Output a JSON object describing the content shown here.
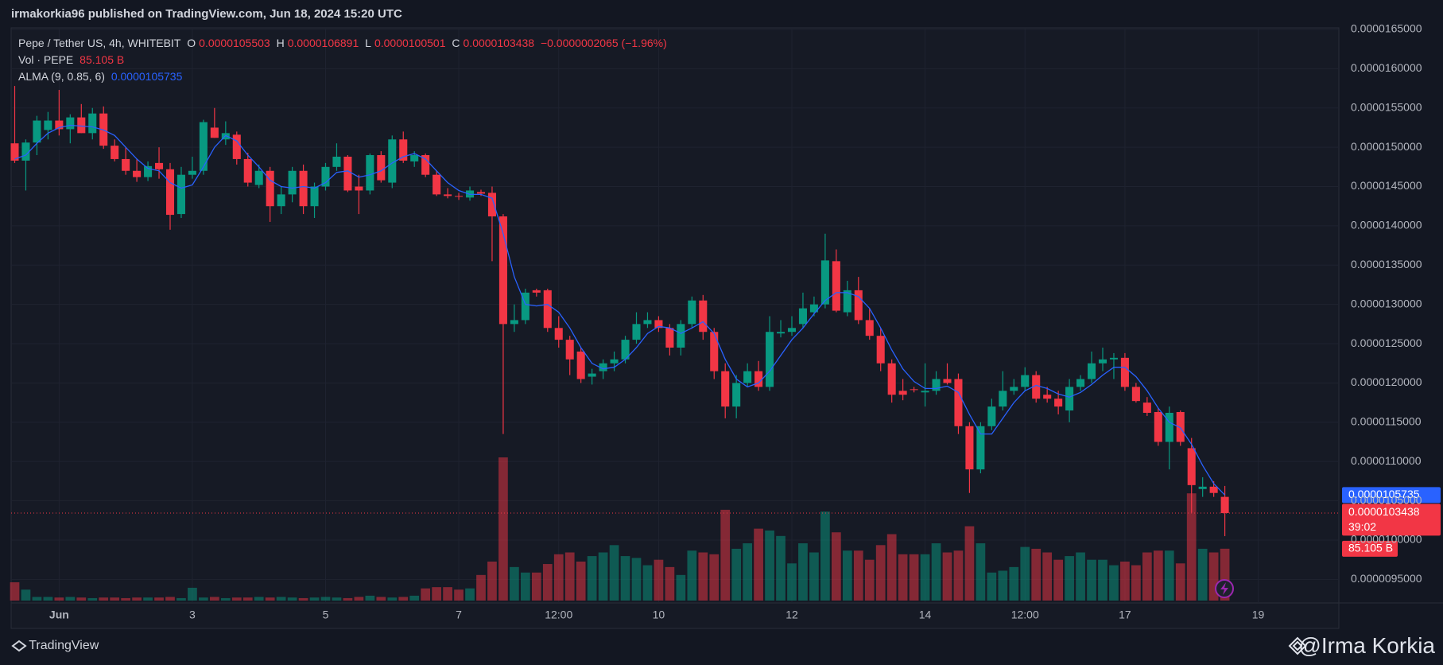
{
  "chart_data": {
    "type": "candlestick",
    "published": "irmakorkia96 published on TradingView.com, Jun 18, 2024 15:20 UTC",
    "symbol": "Pepe / Tether US, 4h, WHITEBIT",
    "ohlc_legend": [
      {
        "key": "O",
        "value": "0.0000105503"
      },
      {
        "key": "H",
        "value": "0.0000106891"
      },
      {
        "key": "L",
        "value": "0.0000100501"
      },
      {
        "key": "C",
        "value": "0.0000103438"
      }
    ],
    "change": "−0.0000002065 (−1.96%)",
    "volume_label": "Vol · PEPE",
    "volume_last": "85.105 B",
    "indicator": "ALMA (9, 0.85, 6)",
    "indicator_last": "0.0000105735",
    "countdown": "39:02",
    "brand": "TradingView",
    "watermark": "@Irma Korkia",
    "up_color": "#089981",
    "down_color": "#f23645",
    "alma_color": "#2962ff",
    "grid": true,
    "ylim": [
      9.2e-06,
      1.652e-05
    ],
    "yticks": [
      {
        "value": 1.65e-05,
        "label": "0.0000165000"
      },
      {
        "value": 1.6e-05,
        "label": "0.0000160000"
      },
      {
        "value": 1.55e-05,
        "label": "0.0000155000"
      },
      {
        "value": 1.5e-05,
        "label": "0.0000150000"
      },
      {
        "value": 1.45e-05,
        "label": "0.0000145000"
      },
      {
        "value": 1.4e-05,
        "label": "0.0000140000"
      },
      {
        "value": 1.35e-05,
        "label": "0.0000135000"
      },
      {
        "value": 1.3e-05,
        "label": "0.0000130000"
      },
      {
        "value": 1.25e-05,
        "label": "0.0000125000"
      },
      {
        "value": 1.2e-05,
        "label": "0.0000120000"
      },
      {
        "value": 1.15e-05,
        "label": "0.0000115000"
      },
      {
        "value": 1.1e-05,
        "label": "0.0000110000"
      },
      {
        "value": 1.05e-05,
        "label": "0.0000105000"
      },
      {
        "value": 1e-05,
        "label": "0.0000100000"
      },
      {
        "value": 9.5e-06,
        "label": "0.0000095000"
      }
    ],
    "xticks": [
      {
        "value": 4,
        "label": "Jun"
      },
      {
        "value": 16,
        "label": "3"
      },
      {
        "value": 28,
        "label": "5"
      },
      {
        "value": 40,
        "label": "7"
      },
      {
        "value": 49,
        "label": "12:00"
      },
      {
        "value": 58,
        "label": "10"
      },
      {
        "value": 70,
        "label": "12"
      },
      {
        "value": 82,
        "label": "14"
      },
      {
        "value": 91,
        "label": "12:00"
      },
      {
        "value": 100,
        "label": "17"
      },
      {
        "value": 112,
        "label": "19"
      }
    ],
    "ohlc": [
      [
        1.505e-05,
        1.578e-05,
        1.48e-05,
        1.483e-05
      ],
      [
        1.483e-05,
        1.51e-05,
        1.445e-05,
        1.506e-05
      ],
      [
        1.506e-05,
        1.54e-05,
        1.49e-05,
        1.534e-05
      ],
      [
        1.522e-05,
        1.545e-05,
        1.51e-05,
        1.534e-05
      ],
      [
        1.534e-05,
        1.573e-05,
        1.515e-05,
        1.523e-05
      ],
      [
        1.523e-05,
        1.542e-05,
        1.505e-05,
        1.538e-05
      ],
      [
        1.538e-05,
        1.555e-05,
        1.518e-05,
        1.518e-05
      ],
      [
        1.518e-05,
        1.55e-05,
        1.51e-05,
        1.543e-05
      ],
      [
        1.543e-05,
        1.552e-05,
        1.498e-05,
        1.502e-05
      ],
      [
        1.502e-05,
        1.51e-05,
        1.482e-05,
        1.485e-05
      ],
      [
        1.485e-05,
        1.5e-05,
        1.465e-05,
        1.47e-05
      ],
      [
        1.47e-05,
        1.485e-05,
        1.456e-05,
        1.462e-05
      ],
      [
        1.462e-05,
        1.482e-05,
        1.457e-05,
        1.476e-05
      ],
      [
        1.48e-05,
        1.5e-05,
        1.46e-05,
        1.472e-05
      ],
      [
        1.472e-05,
        1.48e-05,
        1.395e-05,
        1.414e-05
      ],
      [
        1.415e-05,
        1.475e-05,
        1.41e-05,
        1.465e-05
      ],
      [
        1.465e-05,
        1.488e-05,
        1.46e-05,
        1.47e-05
      ],
      [
        1.47e-05,
        1.535e-05,
        1.465e-05,
        1.532e-05
      ],
      [
        1.525e-05,
        1.55e-05,
        1.512e-05,
        1.512e-05
      ],
      [
        1.51e-05,
        1.533e-05,
        1.503e-05,
        1.518e-05
      ],
      [
        1.516e-05,
        1.52e-05,
        1.478e-05,
        1.485e-05
      ],
      [
        1.485e-05,
        1.493e-05,
        1.45e-05,
        1.455e-05
      ],
      [
        1.452e-05,
        1.478e-05,
        1.448e-05,
        1.47e-05
      ],
      [
        1.47e-05,
        1.475e-05,
        1.405e-05,
        1.425e-05
      ],
      [
        1.425e-05,
        1.45e-05,
        1.415e-05,
        1.44e-05
      ],
      [
        1.44e-05,
        1.475e-05,
        1.43e-05,
        1.47e-05
      ],
      [
        1.47e-05,
        1.478e-05,
        1.415e-05,
        1.425e-05
      ],
      [
        1.425e-05,
        1.455e-05,
        1.41e-05,
        1.45e-05
      ],
      [
        1.45e-05,
        1.48e-05,
        1.445e-05,
        1.475e-05
      ],
      [
        1.475e-05,
        1.505e-05,
        1.47e-05,
        1.488e-05
      ],
      [
        1.488e-05,
        1.49e-05,
        1.443e-05,
        1.445e-05
      ],
      [
        1.45e-05,
        1.465e-05,
        1.415e-05,
        1.445e-05
      ],
      [
        1.445e-05,
        1.492e-05,
        1.44e-05,
        1.49e-05
      ],
      [
        1.49e-05,
        1.495e-05,
        1.455e-05,
        1.458e-05
      ],
      [
        1.455e-05,
        1.515e-05,
        1.448e-05,
        1.51e-05
      ],
      [
        1.51e-05,
        1.52e-05,
        1.48e-05,
        1.483e-05
      ],
      [
        1.482e-05,
        1.495e-05,
        1.475e-05,
        1.49e-05
      ],
      [
        1.49e-05,
        1.492e-05,
        1.462e-05,
        1.465e-05
      ],
      [
        1.465e-05,
        1.47e-05,
        1.438e-05,
        1.44e-05
      ],
      [
        1.44e-05,
        1.448e-05,
        1.435e-05,
        1.438e-05
      ],
      [
        1.438e-05,
        1.442e-05,
        1.433e-05,
        1.437e-05
      ],
      [
        1.436e-05,
        1.45e-05,
        1.432e-05,
        1.445e-05
      ],
      [
        1.443e-05,
        1.446e-05,
        1.438e-05,
        1.441e-05
      ],
      [
        1.442e-05,
        1.45e-05,
        1.355e-05,
        1.412e-05
      ],
      [
        1.412e-05,
        1.415e-05,
        1.135e-05,
        1.275e-05
      ],
      [
        1.275e-05,
        1.3e-05,
        1.265e-05,
        1.28e-05
      ],
      [
        1.28e-05,
        1.32e-05,
        1.275e-05,
        1.315e-05
      ],
      [
        1.318e-05,
        1.32e-05,
        1.31e-05,
        1.315e-05
      ],
      [
        1.318e-05,
        1.32e-05,
        1.265e-05,
        1.27e-05
      ],
      [
        1.27e-05,
        1.285e-05,
        1.245e-05,
        1.255e-05
      ],
      [
        1.255e-05,
        1.26e-05,
        1.21e-05,
        1.23e-05
      ],
      [
        1.24e-05,
        1.245e-05,
        1.2e-05,
        1.205e-05
      ],
      [
        1.208e-05,
        1.218e-05,
        1.198e-05,
        1.212e-05
      ],
      [
        1.215e-05,
        1.23e-05,
        1.205e-05,
        1.225e-05
      ],
      [
        1.225e-05,
        1.24e-05,
        1.215e-05,
        1.23e-05
      ],
      [
        1.23e-05,
        1.26e-05,
        1.225e-05,
        1.255e-05
      ],
      [
        1.255e-05,
        1.29e-05,
        1.25e-05,
        1.275e-05
      ],
      [
        1.275e-05,
        1.29e-05,
        1.27e-05,
        1.28e-05
      ],
      [
        1.28e-05,
        1.285e-05,
        1.265e-05,
        1.27e-05
      ],
      [
        1.27e-05,
        1.275e-05,
        1.235e-05,
        1.245e-05
      ],
      [
        1.245e-05,
        1.28e-05,
        1.235e-05,
        1.275e-05
      ],
      [
        1.275e-05,
        1.31e-05,
        1.27e-05,
        1.305e-05
      ],
      [
        1.305e-05,
        1.312e-05,
        1.255e-05,
        1.265e-05
      ],
      [
        1.265e-05,
        1.27e-05,
        1.205e-05,
        1.215e-05
      ],
      [
        1.215e-05,
        1.225e-05,
        1.155e-05,
        1.17e-05
      ],
      [
        1.17e-05,
        1.21e-05,
        1.155e-05,
        1.2e-05
      ],
      [
        1.2e-05,
        1.225e-05,
        1.195e-05,
        1.215e-05
      ],
      [
        1.215e-05,
        1.228e-05,
        1.19e-05,
        1.195e-05
      ],
      [
        1.195e-05,
        1.285e-05,
        1.19e-05,
        1.265e-05
      ],
      [
        1.263e-05,
        1.28e-05,
        1.258e-05,
        1.265e-05
      ],
      [
        1.265e-05,
        1.285e-05,
        1.26e-05,
        1.27e-05
      ],
      [
        1.275e-05,
        1.315e-05,
        1.27e-05,
        1.295e-05
      ],
      [
        1.29e-05,
        1.31e-05,
        1.285e-05,
        1.3e-05
      ],
      [
        1.3e-05,
        1.39e-05,
        1.295e-05,
        1.356e-05
      ],
      [
        1.355e-05,
        1.37e-05,
        1.29e-05,
        1.292e-05
      ],
      [
        1.29e-05,
        1.33e-05,
        1.285e-05,
        1.318e-05
      ],
      [
        1.318e-05,
        1.335e-05,
        1.275e-05,
        1.28e-05
      ],
      [
        1.28e-05,
        1.295e-05,
        1.255e-05,
        1.26e-05
      ],
      [
        1.26e-05,
        1.27e-05,
        1.215e-05,
        1.225e-05
      ],
      [
        1.225e-05,
        1.23e-05,
        1.175e-05,
        1.185e-05
      ],
      [
        1.19e-05,
        1.205e-05,
        1.178e-05,
        1.185e-05
      ],
      [
        1.192e-05,
        1.195e-05,
        1.188e-05,
        1.191e-05
      ],
      [
        1.188e-05,
        1.225e-05,
        1.17e-05,
        1.19e-05
      ],
      [
        1.19e-05,
        1.215e-05,
        1.185e-05,
        1.205e-05
      ],
      [
        1.205e-05,
        1.225e-05,
        1.198e-05,
        1.2e-05
      ],
      [
        1.205e-05,
        1.212e-05,
        1.135e-05,
        1.145e-05
      ],
      [
        1.145e-05,
        1.15e-05,
        1.06e-05,
        1.09e-05
      ],
      [
        1.09e-05,
        1.15e-05,
        1.085e-05,
        1.145e-05
      ],
      [
        1.145e-05,
        1.18e-05,
        1.14e-05,
        1.17e-05
      ],
      [
        1.17e-05,
        1.215e-05,
        1.165e-05,
        1.19e-05
      ],
      [
        1.19e-05,
        1.205e-05,
        1.185e-05,
        1.195e-05
      ],
      [
        1.195e-05,
        1.22e-05,
        1.19e-05,
        1.21e-05
      ],
      [
        1.21e-05,
        1.215e-05,
        1.175e-05,
        1.18e-05
      ],
      [
        1.185e-05,
        1.195e-05,
        1.175e-05,
        1.18e-05
      ],
      [
        1.18e-05,
        1.19e-05,
        1.16e-05,
        1.17e-05
      ],
      [
        1.165e-05,
        1.205e-05,
        1.15e-05,
        1.195e-05
      ],
      [
        1.195e-05,
        1.21e-05,
        1.19e-05,
        1.205e-05
      ],
      [
        1.205e-05,
        1.24e-05,
        1.2e-05,
        1.225e-05
      ],
      [
        1.225e-05,
        1.245e-05,
        1.215e-05,
        1.23e-05
      ],
      [
        1.23e-05,
        1.238e-05,
        1.205e-05,
        1.232e-05
      ],
      [
        1.232e-05,
        1.238e-05,
        1.19e-05,
        1.195e-05
      ],
      [
        1.195e-05,
        1.2e-05,
        1.175e-05,
        1.177e-05
      ],
      [
        1.175e-05,
        1.182e-05,
        1.158e-05,
        1.162e-05
      ],
      [
        1.163e-05,
        1.168e-05,
        1.12e-05,
        1.125e-05
      ],
      [
        1.125e-05,
        1.17e-05,
        1.09e-05,
        1.162e-05
      ],
      [
        1.163e-05,
        1.165e-05,
        1.12e-05,
        1.125e-05
      ],
      [
        1.117e-05,
        1.13e-05,
        1.035e-05,
        1.07e-05
      ],
      [
        1.065e-05,
        1.08e-05,
        1.055e-05,
        1.068e-05
      ],
      [
        1.068e-05,
        1.075e-05,
        1.055e-05,
        1.06e-05
      ],
      [
        1.05503e-05,
        1.06891e-05,
        1.00501e-05,
        1.03438e-05
      ]
    ],
    "volume": [
      30,
      18,
      6,
      6,
      5,
      6,
      5,
      4,
      5,
      5,
      4,
      5,
      5,
      5,
      6,
      4,
      21,
      5,
      6,
      4,
      5,
      5,
      6,
      5,
      6,
      5,
      4,
      5,
      6,
      5,
      4,
      6,
      8,
      6,
      5,
      6,
      8,
      20,
      22,
      22,
      18,
      20,
      42,
      64,
      235,
      55,
      46,
      46,
      60,
      76,
      79,
      64,
      73,
      79,
      91,
      73,
      70,
      58,
      67,
      55,
      42,
      82,
      79,
      76,
      149,
      85,
      94,
      118,
      115,
      106,
      61,
      94,
      79,
      146,
      112,
      82,
      82,
      67,
      91,
      109,
      76,
      76,
      76,
      94,
      79,
      82,
      122,
      94,
      46,
      49,
      55,
      88,
      85,
      79,
      67,
      73,
      79,
      67,
      67,
      58,
      64,
      58,
      79,
      82,
      82,
      61,
      176,
      85,
      79,
      85.105
    ],
    "alma": [
      1.485e-05,
      1.49e-05,
      1.505e-05,
      1.518e-05,
      1.525e-05,
      1.528e-05,
      1.527e-05,
      1.526e-05,
      1.522e-05,
      1.515e-05,
      1.5e-05,
      1.485e-05,
      1.473e-05,
      1.47e-05,
      1.455e-05,
      1.448e-05,
      1.452e-05,
      1.475e-05,
      1.5e-05,
      1.515e-05,
      1.508e-05,
      1.49e-05,
      1.475e-05,
      1.458e-05,
      1.45e-05,
      1.448e-05,
      1.45e-05,
      1.448e-05,
      1.455e-05,
      1.468e-05,
      1.47e-05,
      1.462e-05,
      1.465e-05,
      1.47e-05,
      1.48e-05,
      1.488e-05,
      1.492e-05,
      1.485e-05,
      1.47e-05,
      1.455e-05,
      1.445e-05,
      1.44e-05,
      1.44e-05,
      1.435e-05,
      1.39e-05,
      1.335e-05,
      1.3e-05,
      1.298e-05,
      1.3e-05,
      1.29e-05,
      1.27e-05,
      1.245e-05,
      1.225e-05,
      1.218e-05,
      1.22e-05,
      1.23e-05,
      1.245e-05,
      1.263e-05,
      1.272e-05,
      1.27e-05,
      1.263e-05,
      1.27e-05,
      1.278e-05,
      1.263e-05,
      1.23e-05,
      1.205e-05,
      1.195e-05,
      1.2e-05,
      1.215e-05,
      1.235e-05,
      1.255e-05,
      1.27e-05,
      1.288e-05,
      1.305e-05,
      1.315e-05,
      1.315e-05,
      1.31e-05,
      1.295e-05,
      1.27e-05,
      1.242e-05,
      1.218e-05,
      1.202e-05,
      1.193e-05,
      1.193e-05,
      1.196e-05,
      1.188e-05,
      1.16e-05,
      1.135e-05,
      1.135e-05,
      1.155e-05,
      1.175e-05,
      1.19e-05,
      1.197e-05,
      1.193e-05,
      1.186e-05,
      1.182e-05,
      1.188e-05,
      1.198e-05,
      1.21e-05,
      1.22e-05,
      1.22e-05,
      1.208e-05,
      1.19e-05,
      1.168e-05,
      1.15e-05,
      1.143e-05,
      1.122e-05,
      1.095e-05,
      1.072e-05,
      1.05735e-05
    ]
  }
}
